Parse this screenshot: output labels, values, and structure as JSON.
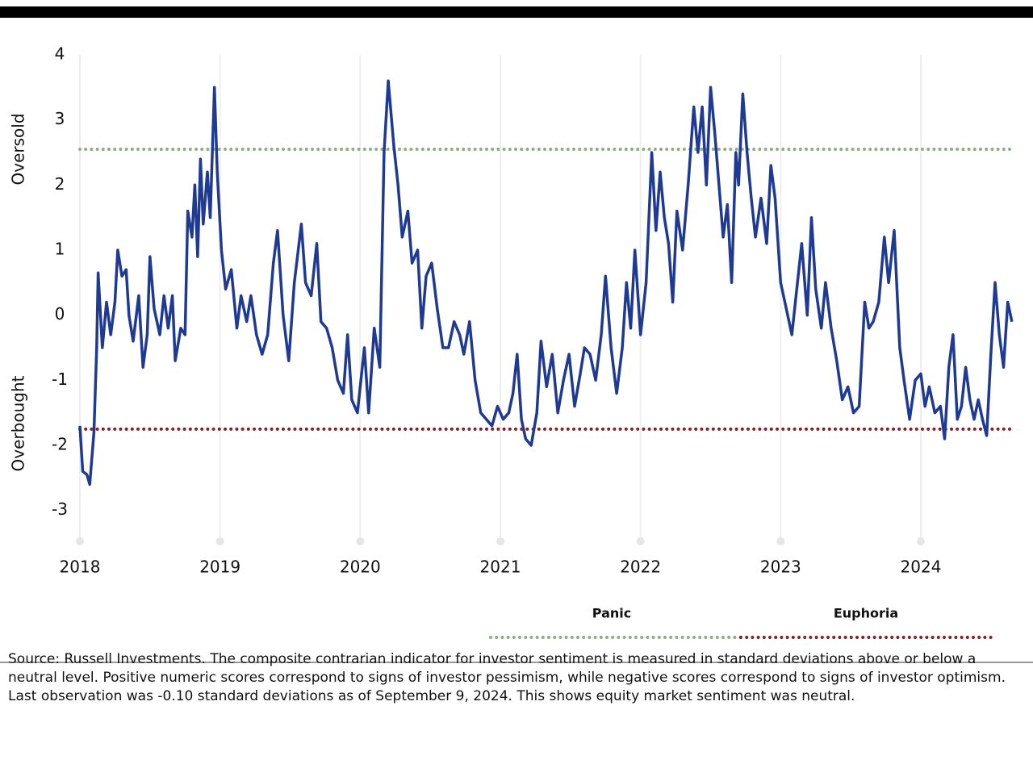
{
  "chart_data": {
    "type": "line",
    "x": [
      2018.0,
      2018.02,
      2018.05,
      2018.07,
      2018.1,
      2018.12,
      2018.13,
      2018.16,
      2018.19,
      2018.22,
      2018.25,
      2018.27,
      2018.3,
      2018.33,
      2018.35,
      2018.38,
      2018.42,
      2018.45,
      2018.48,
      2018.5,
      2018.53,
      2018.57,
      2018.6,
      2018.63,
      2018.66,
      2018.68,
      2018.72,
      2018.75,
      2018.77,
      2018.8,
      2018.82,
      2018.84,
      2018.86,
      2018.88,
      2018.91,
      2018.93,
      2018.96,
      2018.98,
      2019.01,
      2019.04,
      2019.08,
      2019.12,
      2019.15,
      2019.19,
      2019.22,
      2019.26,
      2019.3,
      2019.34,
      2019.38,
      2019.41,
      2019.45,
      2019.49,
      2019.53,
      2019.58,
      2019.61,
      2019.65,
      2019.69,
      2019.72,
      2019.76,
      2019.8,
      2019.84,
      2019.88,
      2019.91,
      2019.94,
      2019.98,
      2020.03,
      2020.06,
      2020.1,
      2020.14,
      2020.17,
      2020.2,
      2020.24,
      2020.27,
      2020.3,
      2020.34,
      2020.37,
      2020.41,
      2020.44,
      2020.47,
      2020.51,
      2020.55,
      2020.59,
      2020.63,
      2020.67,
      2020.71,
      2020.74,
      2020.78,
      2020.82,
      2020.86,
      2020.9,
      2020.94,
      2020.98,
      2021.02,
      2021.06,
      2021.09,
      2021.12,
      2021.15,
      2021.18,
      2021.22,
      2021.26,
      2021.29,
      2021.33,
      2021.37,
      2021.41,
      2021.45,
      2021.49,
      2021.53,
      2021.57,
      2021.6,
      2021.64,
      2021.68,
      2021.72,
      2021.75,
      2021.79,
      2021.83,
      2021.87,
      2021.9,
      2021.93,
      2021.96,
      2022.0,
      2022.04,
      2022.08,
      2022.11,
      2022.14,
      2022.17,
      2022.2,
      2022.23,
      2022.26,
      2022.3,
      2022.34,
      2022.38,
      2022.41,
      2022.44,
      2022.47,
      2022.5,
      2022.53,
      2022.56,
      2022.59,
      2022.62,
      2022.65,
      2022.68,
      2022.7,
      2022.73,
      2022.76,
      2022.79,
      2022.82,
      2022.86,
      2022.9,
      2022.93,
      2022.96,
      2023.0,
      2023.04,
      2023.08,
      2023.11,
      2023.15,
      2023.19,
      2023.22,
      2023.25,
      2023.29,
      2023.32,
      2023.36,
      2023.4,
      2023.44,
      2023.48,
      2023.52,
      2023.56,
      2023.6,
      2023.63,
      2023.66,
      2023.7,
      2023.74,
      2023.77,
      2023.81,
      2023.85,
      2023.88,
      2023.92,
      2023.96,
      2024.0,
      2024.03,
      2024.06,
      2024.1,
      2024.14,
      2024.17,
      2024.2,
      2024.23,
      2024.26,
      2024.29,
      2024.32,
      2024.35,
      2024.38,
      2024.41,
      2024.44,
      2024.47,
      2024.5,
      2024.53,
      2024.56,
      2024.59,
      2024.62,
      2024.65
    ],
    "series": [
      {
        "color": "#1f3a93",
        "values": [
          -1.7,
          -2.4,
          -2.45,
          -2.6,
          -1.8,
          -0.5,
          0.65,
          -0.5,
          0.2,
          -0.3,
          0.2,
          1.0,
          0.6,
          0.7,
          0.0,
          -0.4,
          0.3,
          -0.8,
          -0.3,
          0.9,
          0.1,
          -0.3,
          0.3,
          -0.2,
          0.3,
          -0.7,
          -0.2,
          -0.3,
          1.6,
          1.2,
          2.0,
          0.9,
          2.4,
          1.4,
          2.2,
          1.5,
          3.5,
          2.2,
          1.0,
          0.4,
          0.7,
          -0.2,
          0.3,
          -0.1,
          0.3,
          -0.3,
          -0.6,
          -0.3,
          0.8,
          1.3,
          0.0,
          -0.7,
          0.5,
          1.4,
          0.5,
          0.3,
          1.1,
          -0.1,
          -0.2,
          -0.5,
          -1.0,
          -1.2,
          -0.3,
          -1.3,
          -1.5,
          -0.5,
          -1.5,
          -0.2,
          -0.8,
          2.5,
          3.6,
          2.6,
          2.0,
          1.2,
          1.6,
          0.8,
          1.0,
          -0.2,
          0.6,
          0.8,
          0.1,
          -0.5,
          -0.5,
          -0.1,
          -0.3,
          -0.6,
          -0.1,
          -1.0,
          -1.5,
          -1.6,
          -1.7,
          -1.4,
          -1.6,
          -1.5,
          -1.2,
          -0.6,
          -1.6,
          -1.9,
          -2.0,
          -1.5,
          -0.4,
          -1.1,
          -0.6,
          -1.5,
          -1.0,
          -0.6,
          -1.4,
          -0.9,
          -0.5,
          -0.6,
          -1.0,
          -0.3,
          0.6,
          -0.5,
          -1.2,
          -0.5,
          0.5,
          -0.2,
          1.0,
          -0.3,
          0.5,
          2.5,
          1.3,
          2.2,
          1.5,
          1.1,
          0.2,
          1.6,
          1.0,
          2.0,
          3.2,
          2.5,
          3.2,
          2.0,
          3.5,
          2.8,
          2.0,
          1.2,
          1.7,
          0.5,
          2.5,
          2.0,
          3.4,
          2.5,
          1.8,
          1.2,
          1.8,
          1.1,
          2.3,
          1.8,
          0.5,
          0.1,
          -0.3,
          0.3,
          1.1,
          0.0,
          1.5,
          0.4,
          -0.2,
          0.5,
          -0.2,
          -0.7,
          -1.3,
          -1.1,
          -1.5,
          -1.4,
          0.2,
          -0.2,
          -0.1,
          0.2,
          1.2,
          0.5,
          1.3,
          -0.5,
          -1.0,
          -1.6,
          -1.0,
          -0.9,
          -1.4,
          -1.1,
          -1.5,
          -1.4,
          -1.9,
          -0.8,
          -0.3,
          -1.6,
          -1.4,
          -0.8,
          -1.3,
          -1.6,
          -1.3,
          -1.6,
          -1.85,
          -0.6,
          0.5,
          -0.3,
          -0.8,
          0.2,
          -0.1
        ]
      }
    ],
    "reference_lines": [
      {
        "name": "Panic",
        "value": 2.55,
        "color": "#8fac83"
      },
      {
        "name": "Euphoria",
        "value": -1.75,
        "color": "#8b1c24"
      }
    ],
    "y_label_top": "Oversold",
    "y_label_bottom": "Overbought",
    "xlim": [
      2018,
      2024.66
    ],
    "xticks": [
      2018,
      2019,
      2020,
      2021,
      2022,
      2023,
      2024
    ],
    "ylim": [
      -3.5,
      4
    ],
    "yticks": [
      -3,
      -2,
      -1,
      0,
      1,
      2,
      3,
      4
    ],
    "grid": true,
    "footnote": [
      "Source: Russell Investments. The composite contrarian indicator for investor sentiment is measured in standard deviations above or below a neutral level. Positive numeric scores correspond to signs of investor pessimism, while negative scores correspond to signs of investor optimism.",
      "Last observation was -0.10 standard deviations as of September 9, 2024. This shows equity market sentiment was neutral."
    ]
  }
}
